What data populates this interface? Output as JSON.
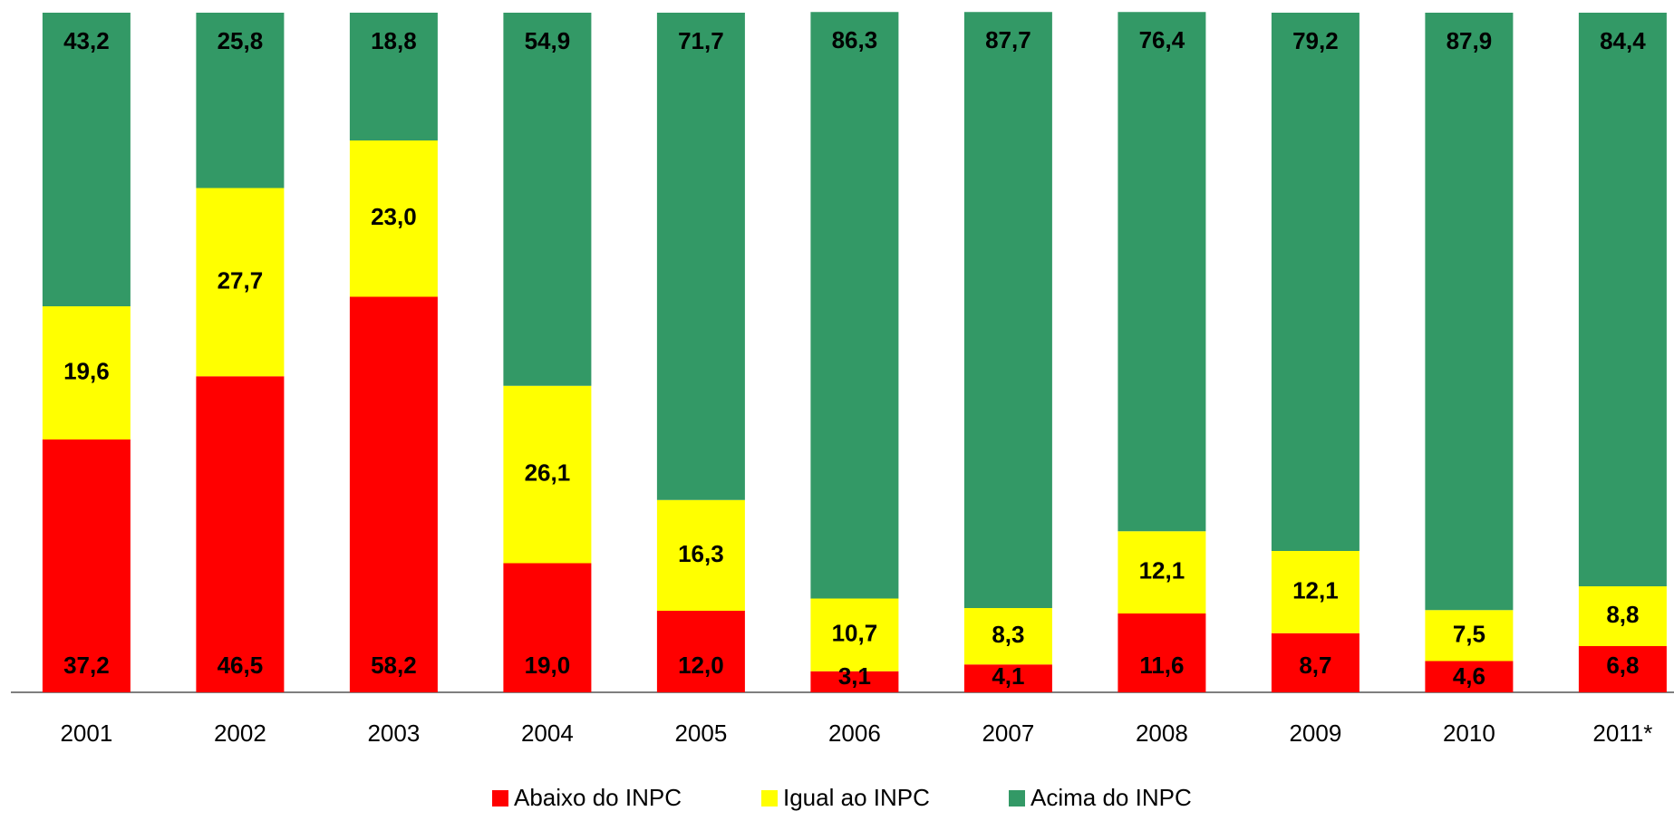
{
  "chart_data": {
    "type": "bar",
    "stacked": true,
    "categories": [
      "2001",
      "2002",
      "2003",
      "2004",
      "2005",
      "2006",
      "2007",
      "2008",
      "2009",
      "2010",
      "2011*"
    ],
    "series": [
      {
        "name": "Abaixo do INPC",
        "color": "#ff0000",
        "values": [
          37.2,
          46.5,
          58.2,
          19.0,
          12.0,
          3.1,
          4.1,
          11.6,
          8.7,
          4.6,
          6.8
        ],
        "value_labels": [
          "37,2",
          "46,5",
          "58,2",
          "19,0",
          "12,0",
          "3,1",
          "4,1",
          "11,6",
          "8,7",
          "4,6",
          "6,8"
        ]
      },
      {
        "name": "Igual ao INPC",
        "color": "#ffff00",
        "values": [
          19.6,
          27.7,
          23.0,
          26.1,
          16.3,
          10.7,
          8.3,
          12.1,
          12.1,
          7.5,
          8.8
        ],
        "value_labels": [
          "19,6",
          "27,7",
          "23,0",
          "26,1",
          "16,3",
          "10,7",
          "8,3",
          "12,1",
          "12,1",
          "7,5",
          "8,8"
        ]
      },
      {
        "name": "Acima do INPC",
        "color": "#339966",
        "values": [
          43.2,
          25.8,
          18.8,
          54.9,
          71.7,
          86.3,
          87.7,
          76.4,
          79.2,
          87.9,
          84.4
        ],
        "value_labels": [
          "43,2",
          "25,8",
          "18,8",
          "54,9",
          "71,7",
          "86,3",
          "87,7",
          "76,4",
          "79,2",
          "87,9",
          "84,4"
        ]
      }
    ],
    "ylim": [
      0,
      100
    ],
    "legend": "bottom"
  }
}
